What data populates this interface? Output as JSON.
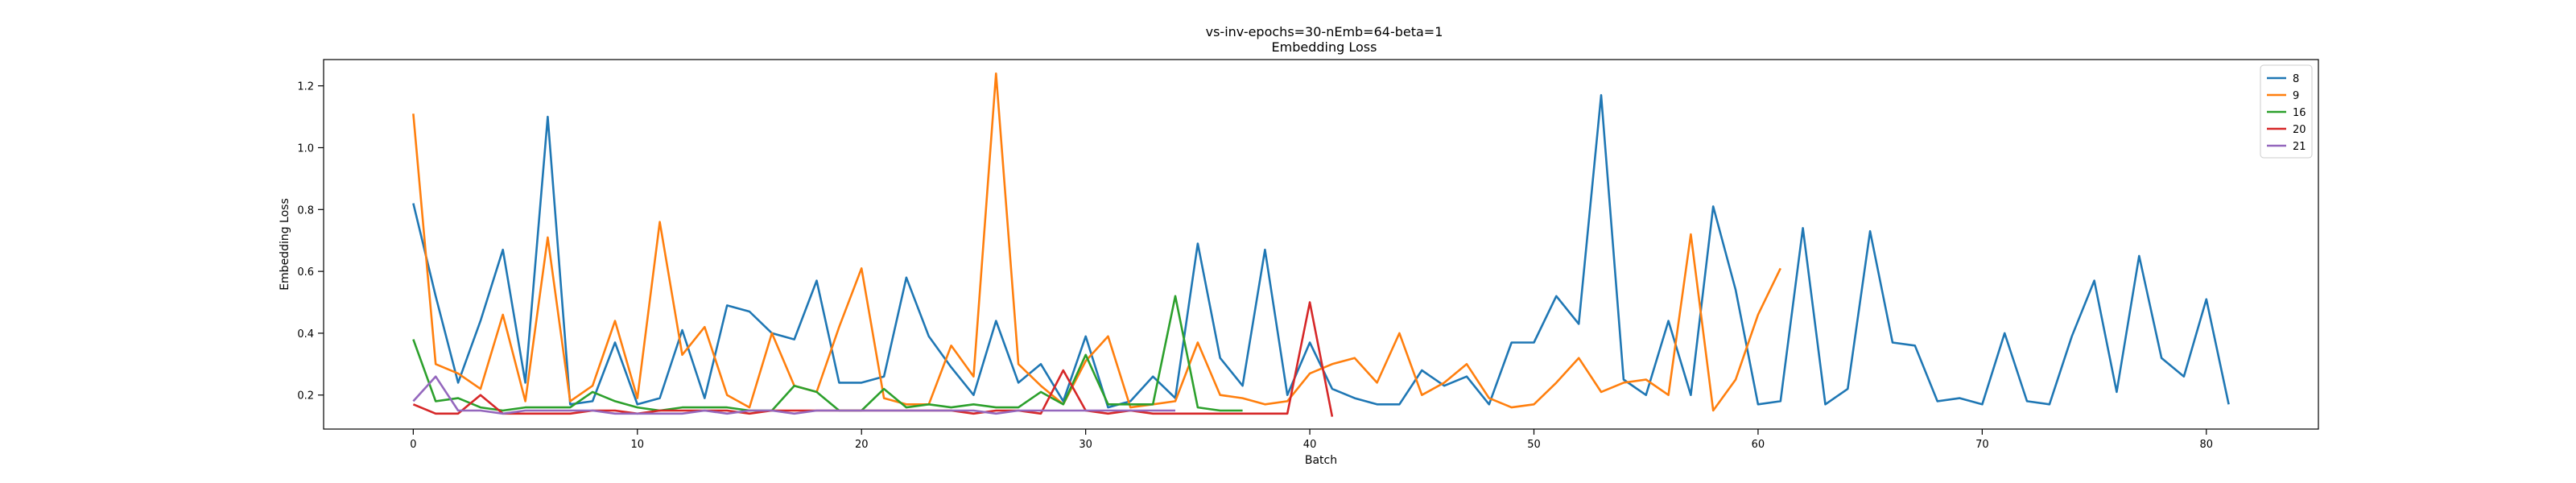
{
  "chart_data": {
    "type": "line",
    "title": "vs-inv-epochs=30-nEmb=64-beta=1",
    "subtitle": "Embedding Loss",
    "xlabel": "Batch",
    "ylabel": "Embedding Loss",
    "xlim": [
      -4,
      85
    ],
    "ylim": [
      0.09,
      1.285
    ],
    "xticks": [
      0,
      10,
      20,
      30,
      40,
      50,
      60,
      70,
      80
    ],
    "yticks": [
      0.2,
      0.4,
      0.6,
      0.8,
      1.0,
      1.2
    ],
    "grid": false,
    "legend_position": "top-right",
    "series": [
      {
        "name": "8",
        "color": "#1f77b4",
        "values": [
          0.82,
          0.52,
          0.24,
          0.44,
          0.67,
          0.24,
          1.1,
          0.17,
          0.18,
          0.37,
          0.17,
          0.19,
          0.41,
          0.19,
          0.49,
          0.47,
          0.4,
          0.38,
          0.57,
          0.24,
          0.24,
          0.26,
          0.58,
          0.39,
          0.29,
          0.2,
          0.44,
          0.24,
          0.3,
          0.18,
          0.39,
          0.16,
          0.18,
          0.26,
          0.19,
          0.69,
          0.32,
          0.23,
          0.67,
          0.2,
          0.37,
          0.22,
          0.19,
          0.17,
          0.17,
          0.28,
          0.23,
          0.26,
          0.17,
          0.37,
          0.37,
          0.52,
          0.43,
          1.17,
          0.25,
          0.2,
          0.44,
          0.2,
          0.81,
          0.54,
          0.17,
          0.18,
          0.74,
          0.17,
          0.22,
          0.73,
          0.37,
          0.36,
          0.18,
          0.19,
          0.17,
          0.4,
          0.18,
          0.17,
          0.39,
          0.57,
          0.21,
          0.65,
          0.32,
          0.26,
          0.51,
          0.17
        ]
      },
      {
        "name": "9",
        "color": "#ff7f0e",
        "values": [
          1.11,
          0.3,
          0.27,
          0.22,
          0.46,
          0.18,
          0.71,
          0.18,
          0.23,
          0.44,
          0.19,
          0.76,
          0.33,
          0.42,
          0.2,
          0.16,
          0.4,
          0.23,
          0.21,
          0.42,
          0.61,
          0.19,
          0.17,
          0.17,
          0.36,
          0.26,
          1.24,
          0.3,
          0.23,
          0.17,
          0.31,
          0.39,
          0.16,
          0.17,
          0.18,
          0.37,
          0.2,
          0.19,
          0.17,
          0.18,
          0.27,
          0.3,
          0.32,
          0.24,
          0.4,
          0.2,
          0.24,
          0.3,
          0.19,
          0.16,
          0.17,
          0.24,
          0.32,
          0.21,
          0.24,
          0.25,
          0.2,
          0.72,
          0.15,
          0.25,
          0.46,
          0.61
        ]
      },
      {
        "name": "16",
        "color": "#2ca02c",
        "values": [
          0.38,
          0.18,
          0.19,
          0.16,
          0.15,
          0.16,
          0.16,
          0.16,
          0.21,
          0.18,
          0.16,
          0.15,
          0.16,
          0.16,
          0.16,
          0.15,
          0.15,
          0.23,
          0.21,
          0.15,
          0.15,
          0.22,
          0.16,
          0.17,
          0.16,
          0.17,
          0.16,
          0.16,
          0.21,
          0.17,
          0.33,
          0.17,
          0.17,
          0.17,
          0.52,
          0.16,
          0.15,
          0.15
        ]
      },
      {
        "name": "20",
        "color": "#d62728",
        "values": [
          0.17,
          0.14,
          0.14,
          0.2,
          0.14,
          0.14,
          0.14,
          0.14,
          0.15,
          0.15,
          0.14,
          0.15,
          0.15,
          0.15,
          0.15,
          0.14,
          0.15,
          0.15,
          0.15,
          0.15,
          0.15,
          0.15,
          0.15,
          0.15,
          0.15,
          0.14,
          0.15,
          0.15,
          0.14,
          0.28,
          0.15,
          0.14,
          0.15,
          0.14,
          0.14,
          0.14,
          0.14,
          0.14,
          0.14,
          0.14,
          0.5,
          0.13
        ]
      },
      {
        "name": "21",
        "color": "#9467bd",
        "values": [
          0.18,
          0.26,
          0.15,
          0.15,
          0.14,
          0.15,
          0.15,
          0.15,
          0.15,
          0.14,
          0.14,
          0.14,
          0.14,
          0.15,
          0.14,
          0.15,
          0.15,
          0.14,
          0.15,
          0.15,
          0.15,
          0.15,
          0.15,
          0.15,
          0.15,
          0.15,
          0.14,
          0.15,
          0.15,
          0.15,
          0.15,
          0.15,
          0.15,
          0.15,
          0.15
        ]
      }
    ]
  }
}
